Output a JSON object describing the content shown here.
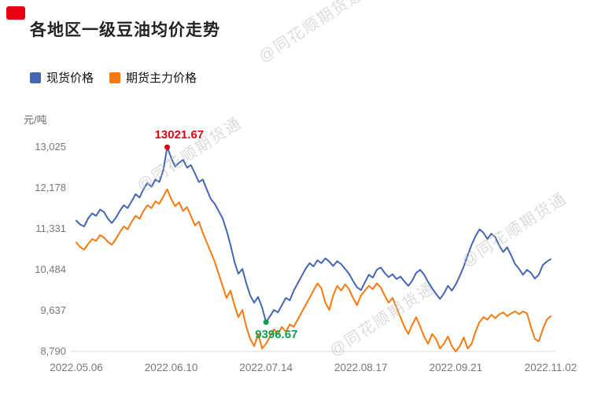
{
  "title": "各地区一级豆油均价走势",
  "unit_label": "元/吨",
  "watermark": {
    "text": "@同花顺期货通"
  },
  "legend": [
    {
      "label": "现货价格",
      "color": "#4466b2"
    },
    {
      "label": "期货主力价格",
      "color": "#f8790f"
    }
  ],
  "colors": {
    "spot_line": "#4466b2",
    "futures_line": "#f8790f",
    "max_annotation": "#e60012",
    "min_annotation": "#0aa14e",
    "axis_text": "#777777",
    "baseline": "#d9d9d9",
    "logo_red": "#e60012"
  },
  "chart_data": {
    "type": "line",
    "title": "各地区一级豆油均价走势",
    "xlabel": "",
    "ylabel": "元/吨",
    "ylim": [
      8790,
      13025
    ],
    "y_ticks": [
      13025,
      12178,
      11331,
      10484,
      9637,
      8790
    ],
    "y_tick_labels": [
      "13,025",
      "12,178",
      "11,331",
      "10,484",
      "9,637",
      "8,790"
    ],
    "x_ticks": [
      "2022.05.06",
      "2022.06.10",
      "2022.07.14",
      "2022.08.17",
      "2022.09.21",
      "2022.11.02"
    ],
    "grid": false,
    "legend_position": "top-left",
    "annotations": {
      "max": {
        "label": "13021.67",
        "value": 13021.67,
        "series": "现货价格",
        "color": "#e60012"
      },
      "min": {
        "label": "9396.67",
        "value": 9396.67,
        "series": "现货价格",
        "color": "#0aa14e"
      }
    },
    "series": [
      {
        "name": "现货价格",
        "color": "#4466b2",
        "values": [
          11500,
          11420,
          11380,
          11550,
          11650,
          11600,
          11730,
          11680,
          11540,
          11450,
          11560,
          11700,
          11820,
          11760,
          11900,
          12050,
          11980,
          12150,
          12280,
          12200,
          12350,
          12300,
          12550,
          13021.67,
          12800,
          12620,
          12700,
          12760,
          12600,
          12650,
          12480,
          12300,
          12350,
          12150,
          11950,
          11850,
          11700,
          11550,
          11300,
          11000,
          10650,
          10400,
          10500,
          10200,
          9950,
          9800,
          9920,
          9700,
          9396.67,
          9520,
          9650,
          9600,
          9750,
          9900,
          9850,
          10050,
          10200,
          10350,
          10500,
          10620,
          10550,
          10680,
          10620,
          10720,
          10650,
          10560,
          10660,
          10600,
          10500,
          10400,
          10250,
          10120,
          10060,
          10220,
          10380,
          10320,
          10480,
          10530,
          10420,
          10330,
          10390,
          10290,
          10340,
          10240,
          10150,
          10260,
          10420,
          10480,
          10380,
          10230,
          10100,
          9980,
          9880,
          9990,
          10150,
          10050,
          10180,
          10350,
          10550,
          10780,
          11000,
          11180,
          11320,
          11250,
          11120,
          11230,
          11160,
          10980,
          10850,
          10950,
          10780,
          10600,
          10500,
          10380,
          10480,
          10420,
          10300,
          10380,
          10580,
          10650,
          10700
        ]
      },
      {
        "name": "期货主力价格",
        "color": "#f8790f",
        "values": [
          11050,
          10950,
          10900,
          11020,
          11120,
          11080,
          11200,
          11150,
          11060,
          11000,
          11120,
          11260,
          11380,
          11320,
          11480,
          11600,
          11540,
          11700,
          11820,
          11760,
          11900,
          11850,
          12000,
          12150,
          11950,
          11800,
          11880,
          11700,
          11780,
          11600,
          11400,
          11480,
          11250,
          11050,
          10850,
          10650,
          10400,
          10150,
          9900,
          10050,
          9750,
          9500,
          9650,
          9300,
          9050,
          8900,
          9150,
          8850,
          8950,
          9100,
          9250,
          9150,
          9300,
          9200,
          9350,
          9300,
          9450,
          9600,
          9750,
          9900,
          10050,
          10200,
          10100,
          9800,
          9650,
          9950,
          10150,
          10050,
          10180,
          10080,
          9900,
          9750,
          9950,
          10050,
          10150,
          10080,
          10200,
          10120,
          9950,
          9800,
          9900,
          9700,
          9500,
          9300,
          9150,
          9350,
          9500,
          9300,
          9100,
          8950,
          9150,
          9050,
          8850,
          8950,
          9100,
          8900,
          8790,
          8900,
          9080,
          8850,
          8950,
          9200,
          9400,
          9500,
          9450,
          9550,
          9480,
          9560,
          9600,
          9520,
          9580,
          9620,
          9560,
          9620,
          9580,
          9300,
          9050,
          9000,
          9250,
          9450,
          9520
        ]
      }
    ]
  }
}
